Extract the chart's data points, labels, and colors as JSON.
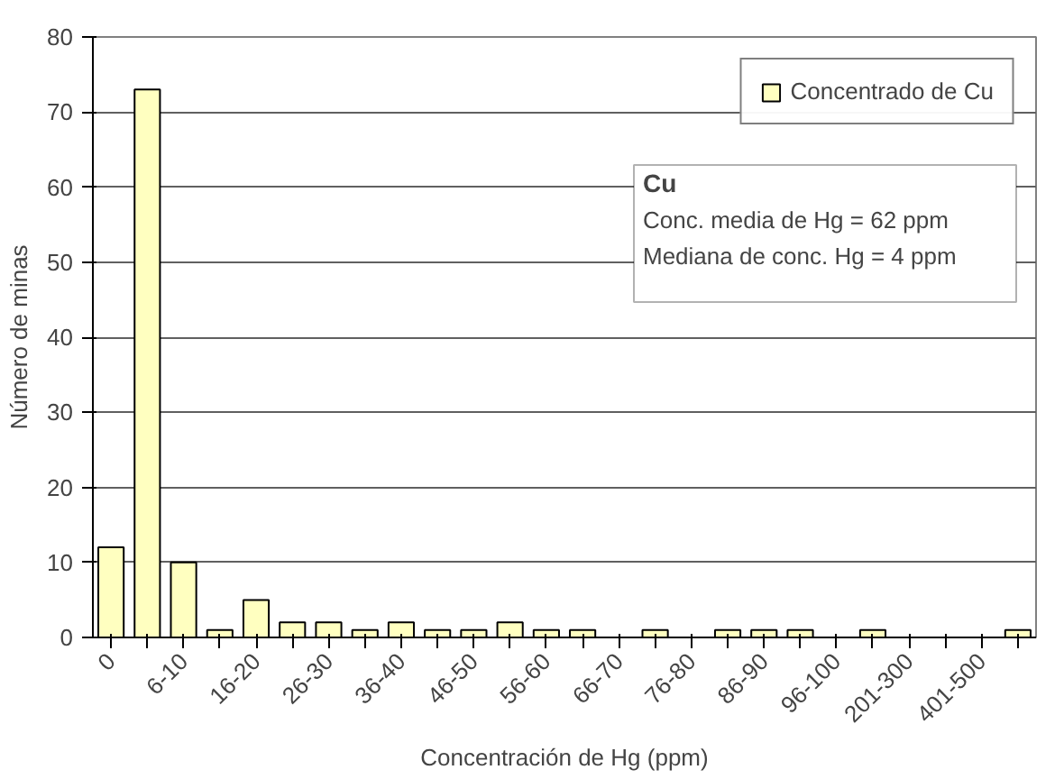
{
  "chart_data": {
    "type": "bar",
    "xlabel": "Concentración de Hg (ppm)",
    "ylabel": "Número de minas",
    "categories": [
      "0",
      null,
      "6-10",
      null,
      "16-20",
      null,
      "26-30",
      null,
      "36-40",
      null,
      "46-50",
      null,
      "56-60",
      null,
      "66-70",
      null,
      "76-80",
      null,
      "86-90",
      null,
      "96-100",
      null,
      "201-300",
      null,
      "401-500",
      null
    ],
    "series": [
      {
        "name": "Concentrado de Cu",
        "color": "#ffffc0",
        "values": [
          12,
          73,
          10,
          1,
          5,
          2,
          2,
          1,
          2,
          1,
          1,
          2,
          1,
          1,
          null,
          1,
          null,
          1,
          1,
          1,
          null,
          1,
          null,
          null,
          null,
          1
        ]
      }
    ],
    "ylim": [
      0,
      80
    ],
    "yticks": [
      0,
      10,
      20,
      30,
      40,
      50,
      60,
      70,
      80
    ],
    "grid": "y",
    "legend": "top right",
    "annotations": [
      "Cu",
      "Conc. media de Hg = 62 ppm",
      "Mediana de conc. Hg = 4 ppm"
    ]
  }
}
